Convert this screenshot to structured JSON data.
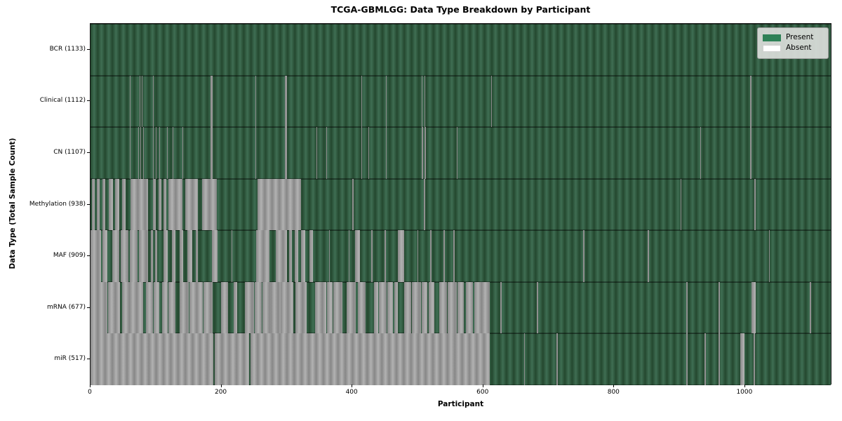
{
  "figure": {
    "title": "TCGA-GBMLGG: Data Type Breakdown by Participant",
    "xlabel": "Participant",
    "ylabel": "Data Type (Total Sample Count)"
  },
  "legend": {
    "entries": [
      {
        "label": "Present",
        "color": "#2e8157"
      },
      {
        "label": "Absent",
        "color": "#ffffff"
      }
    ]
  },
  "chart_data": {
    "type": "heatmap",
    "title": "TCGA-GBMLGG: Data Type Breakdown by Participant",
    "xlabel": "Participant",
    "ylabel": "Data Type (Total Sample Count)",
    "legend_position": "upper right",
    "grid": false,
    "n_participants": 1133,
    "xlim": [
      0,
      1133
    ],
    "x_ticks": [
      0,
      200,
      400,
      600,
      800,
      1000
    ],
    "colors": {
      "present_base": "#2e5c44",
      "present_dark": "#24482f",
      "present_light": "#3f6e53",
      "absent_base": "#9a9a9a",
      "absent_dark": "#878787",
      "absent_light": "#b2b2b2",
      "legend_present": "#2e8157",
      "legend_absent": "#ffffff"
    },
    "rows": [
      {
        "name": "BCR",
        "total": 1133,
        "label": "BCR (1133)",
        "absent_segments": []
      },
      {
        "name": "Clinical",
        "total": 1112,
        "label": "Clinical (1112)",
        "absent_segments": [
          [
            60,
            61
          ],
          [
            75,
            76
          ],
          [
            78,
            79
          ],
          [
            95,
            96
          ],
          [
            183,
            186
          ],
          [
            252,
            253
          ],
          [
            297,
            300
          ],
          [
            414,
            415
          ],
          [
            451,
            452
          ],
          [
            506,
            507
          ],
          [
            510,
            511
          ],
          [
            612,
            613
          ],
          [
            1008,
            1010
          ]
        ]
      },
      {
        "name": "CN",
        "total": 1107,
        "label": "CN (1107)",
        "absent_segments": [
          [
            60,
            61
          ],
          [
            73,
            74
          ],
          [
            76,
            77
          ],
          [
            80,
            81
          ],
          [
            95,
            96
          ],
          [
            100,
            101
          ],
          [
            105,
            106
          ],
          [
            117,
            118
          ],
          [
            125,
            126
          ],
          [
            140,
            141
          ],
          [
            183,
            186
          ],
          [
            252,
            253
          ],
          [
            297,
            300
          ],
          [
            345,
            346
          ],
          [
            360,
            361
          ],
          [
            414,
            415
          ],
          [
            424,
            425
          ],
          [
            451,
            452
          ],
          [
            506,
            508
          ],
          [
            510,
            512
          ],
          [
            560,
            561
          ],
          [
            931,
            933
          ],
          [
            1008,
            1010
          ]
        ]
      },
      {
        "name": "Methylation",
        "total": 938,
        "label": "Methylation (938)",
        "absent_segments": [
          [
            2,
            6
          ],
          [
            10,
            14
          ],
          [
            18,
            22
          ],
          [
            28,
            34
          ],
          [
            38,
            44
          ],
          [
            48,
            54
          ],
          [
            61,
            88
          ],
          [
            95,
            100
          ],
          [
            104,
            108
          ],
          [
            112,
            116
          ],
          [
            119,
            140
          ],
          [
            145,
            164
          ],
          [
            170,
            193
          ],
          [
            255,
            322
          ],
          [
            400,
            402
          ],
          [
            509,
            511
          ],
          [
            901,
            903
          ],
          [
            1014,
            1016
          ]
        ]
      },
      {
        "name": "MAF",
        "total": 909,
        "label": "MAF (909)",
        "absent_segments": [
          [
            0,
            16
          ],
          [
            18,
            26
          ],
          [
            33,
            44
          ],
          [
            46,
            58
          ],
          [
            60,
            72
          ],
          [
            74,
            88
          ],
          [
            92,
            95
          ],
          [
            99,
            102
          ],
          [
            112,
            118
          ],
          [
            124,
            130
          ],
          [
            136,
            142
          ],
          [
            148,
            155
          ],
          [
            161,
            164
          ],
          [
            185,
            194
          ],
          [
            215,
            217
          ],
          [
            253,
            273
          ],
          [
            283,
            300
          ],
          [
            303,
            308
          ],
          [
            312,
            317
          ],
          [
            322,
            328
          ],
          [
            334,
            340
          ],
          [
            364,
            366
          ],
          [
            394,
            396
          ],
          [
            404,
            412
          ],
          [
            429,
            431
          ],
          [
            449,
            451
          ],
          [
            470,
            479
          ],
          [
            499,
            501
          ],
          [
            519,
            521
          ],
          [
            539,
            541
          ],
          [
            554,
            556
          ],
          [
            753,
            755
          ],
          [
            851,
            853
          ],
          [
            1036,
            1038
          ]
        ]
      },
      {
        "name": "mRNA",
        "total": 677,
        "label": "mRNA (677)",
        "absent_segments": [
          [
            0,
            26
          ],
          [
            27,
            45
          ],
          [
            48,
            80
          ],
          [
            85,
            95
          ],
          [
            96,
            105
          ],
          [
            109,
            118
          ],
          [
            119,
            130
          ],
          [
            136,
            150
          ],
          [
            151,
            172
          ],
          [
            173,
            186
          ],
          [
            199,
            210
          ],
          [
            219,
            224
          ],
          [
            236,
            250
          ],
          [
            251,
            262
          ],
          [
            263,
            275
          ],
          [
            276,
            290
          ],
          [
            291,
            310
          ],
          [
            313,
            330
          ],
          [
            343,
            360
          ],
          [
            361,
            370
          ],
          [
            371,
            385
          ],
          [
            391,
            405
          ],
          [
            408,
            420
          ],
          [
            433,
            440
          ],
          [
            441,
            452
          ],
          [
            453,
            462
          ],
          [
            464,
            470
          ],
          [
            479,
            490
          ],
          [
            491,
            505
          ],
          [
            506,
            515
          ],
          [
            517,
            525
          ],
          [
            533,
            545
          ],
          [
            546,
            560
          ],
          [
            561,
            570
          ],
          [
            573,
            584
          ],
          [
            586,
            610
          ],
          [
            626,
            628
          ],
          [
            682,
            684
          ],
          [
            910,
            912
          ],
          [
            959,
            961
          ],
          [
            1010,
            1016
          ],
          [
            1099,
            1101
          ]
        ]
      },
      {
        "name": "miR",
        "total": 517,
        "label": "miR (517)",
        "absent_segments": [
          [
            0,
            188
          ],
          [
            190,
            242
          ],
          [
            244,
            610
          ],
          [
            662,
            664
          ],
          [
            712,
            714
          ],
          [
            910,
            912
          ],
          [
            938,
            940
          ],
          [
            959,
            961
          ],
          [
            993,
            999
          ],
          [
            1013,
            1015
          ]
        ]
      }
    ]
  },
  "layout_values": {
    "note": "values visible on screen only"
  }
}
